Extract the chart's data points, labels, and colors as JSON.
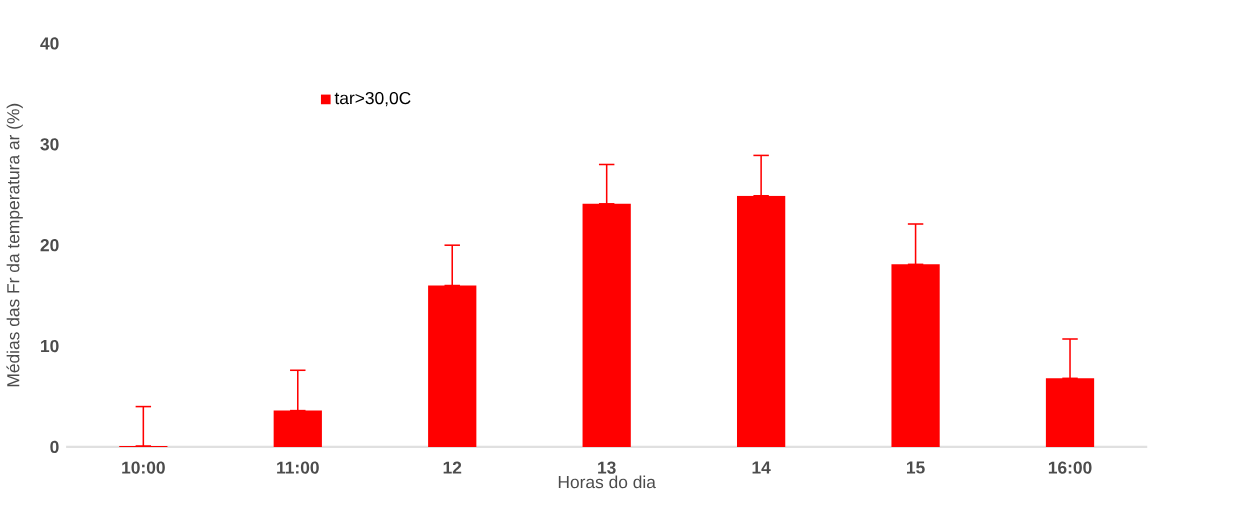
{
  "chart_data": {
    "type": "bar",
    "xlabel": "Horas do dia",
    "ylabel": "Médias das Fr da temperatura ar (%)",
    "categories": [
      "10:00",
      "11:00",
      "12",
      "13",
      "14",
      "15",
      "16:00"
    ],
    "series": [
      {
        "name": "tar>30,0C",
        "color": "#ff0000",
        "values": [
          0.1,
          3.6,
          16.0,
          24.1,
          24.9,
          18.1,
          6.8
        ],
        "errors": [
          [
            0.1,
            4.0
          ],
          [
            3.6,
            7.6
          ],
          [
            16.0,
            20.0
          ],
          [
            24.1,
            28.0
          ],
          [
            24.9,
            28.9
          ],
          [
            18.1,
            22.1
          ],
          [
            6.8,
            10.7
          ]
        ]
      }
    ],
    "ylim": [
      0,
      40
    ],
    "yticks": [
      0,
      10,
      20,
      30,
      40
    ],
    "legend": "top left"
  }
}
